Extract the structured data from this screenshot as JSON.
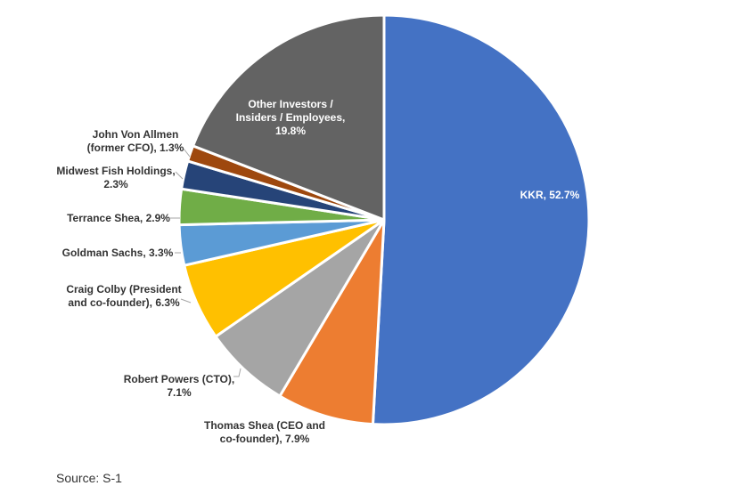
{
  "chart_data": {
    "type": "pie",
    "title": "",
    "slices": [
      {
        "name": "KKR",
        "value": 52.7,
        "color": "#4472C4",
        "label_lines": [
          "KKR, 52.7%"
        ]
      },
      {
        "name": "Thomas Shea (CEO and co-founder)",
        "value": 7.9,
        "color": "#ED7D31",
        "label_lines": [
          "Thomas Shea (CEO and",
          "co-founder), 7.9%"
        ]
      },
      {
        "name": "Robert Powers (CTO)",
        "value": 7.1,
        "color": "#A5A5A5",
        "label_lines": [
          "Robert Powers (CTO),",
          "7.1%"
        ]
      },
      {
        "name": "Craig Colby (President and co-founder)",
        "value": 6.3,
        "color": "#FFC000",
        "label_lines": [
          "Craig Colby (President",
          "and co-founder), 6.3%"
        ]
      },
      {
        "name": "Goldman Sachs",
        "value": 3.3,
        "color": "#5B9BD5",
        "label_lines": [
          "Goldman Sachs, 3.3%"
        ]
      },
      {
        "name": "Terrance Shea",
        "value": 2.9,
        "color": "#70AD47",
        "label_lines": [
          "Terrance Shea, 2.9%"
        ]
      },
      {
        "name": "Midwest Fish Holdings",
        "value": 2.3,
        "color": "#264478",
        "label_lines": [
          "Midwest Fish Holdings,",
          "2.3%"
        ]
      },
      {
        "name": "John Von Allmen (former CFO)",
        "value": 1.3,
        "color": "#9E480E",
        "label_lines": [
          "John Von Allmen",
          "(former CFO), 1.3%"
        ]
      },
      {
        "name": "Other Investors / Insiders / Employees",
        "value": 19.8,
        "color": "#636363",
        "label_lines": [
          "Other Investors /",
          "Insiders / Employees,",
          "19.8%"
        ]
      }
    ]
  },
  "footer": {
    "source": "Source: S-1"
  }
}
